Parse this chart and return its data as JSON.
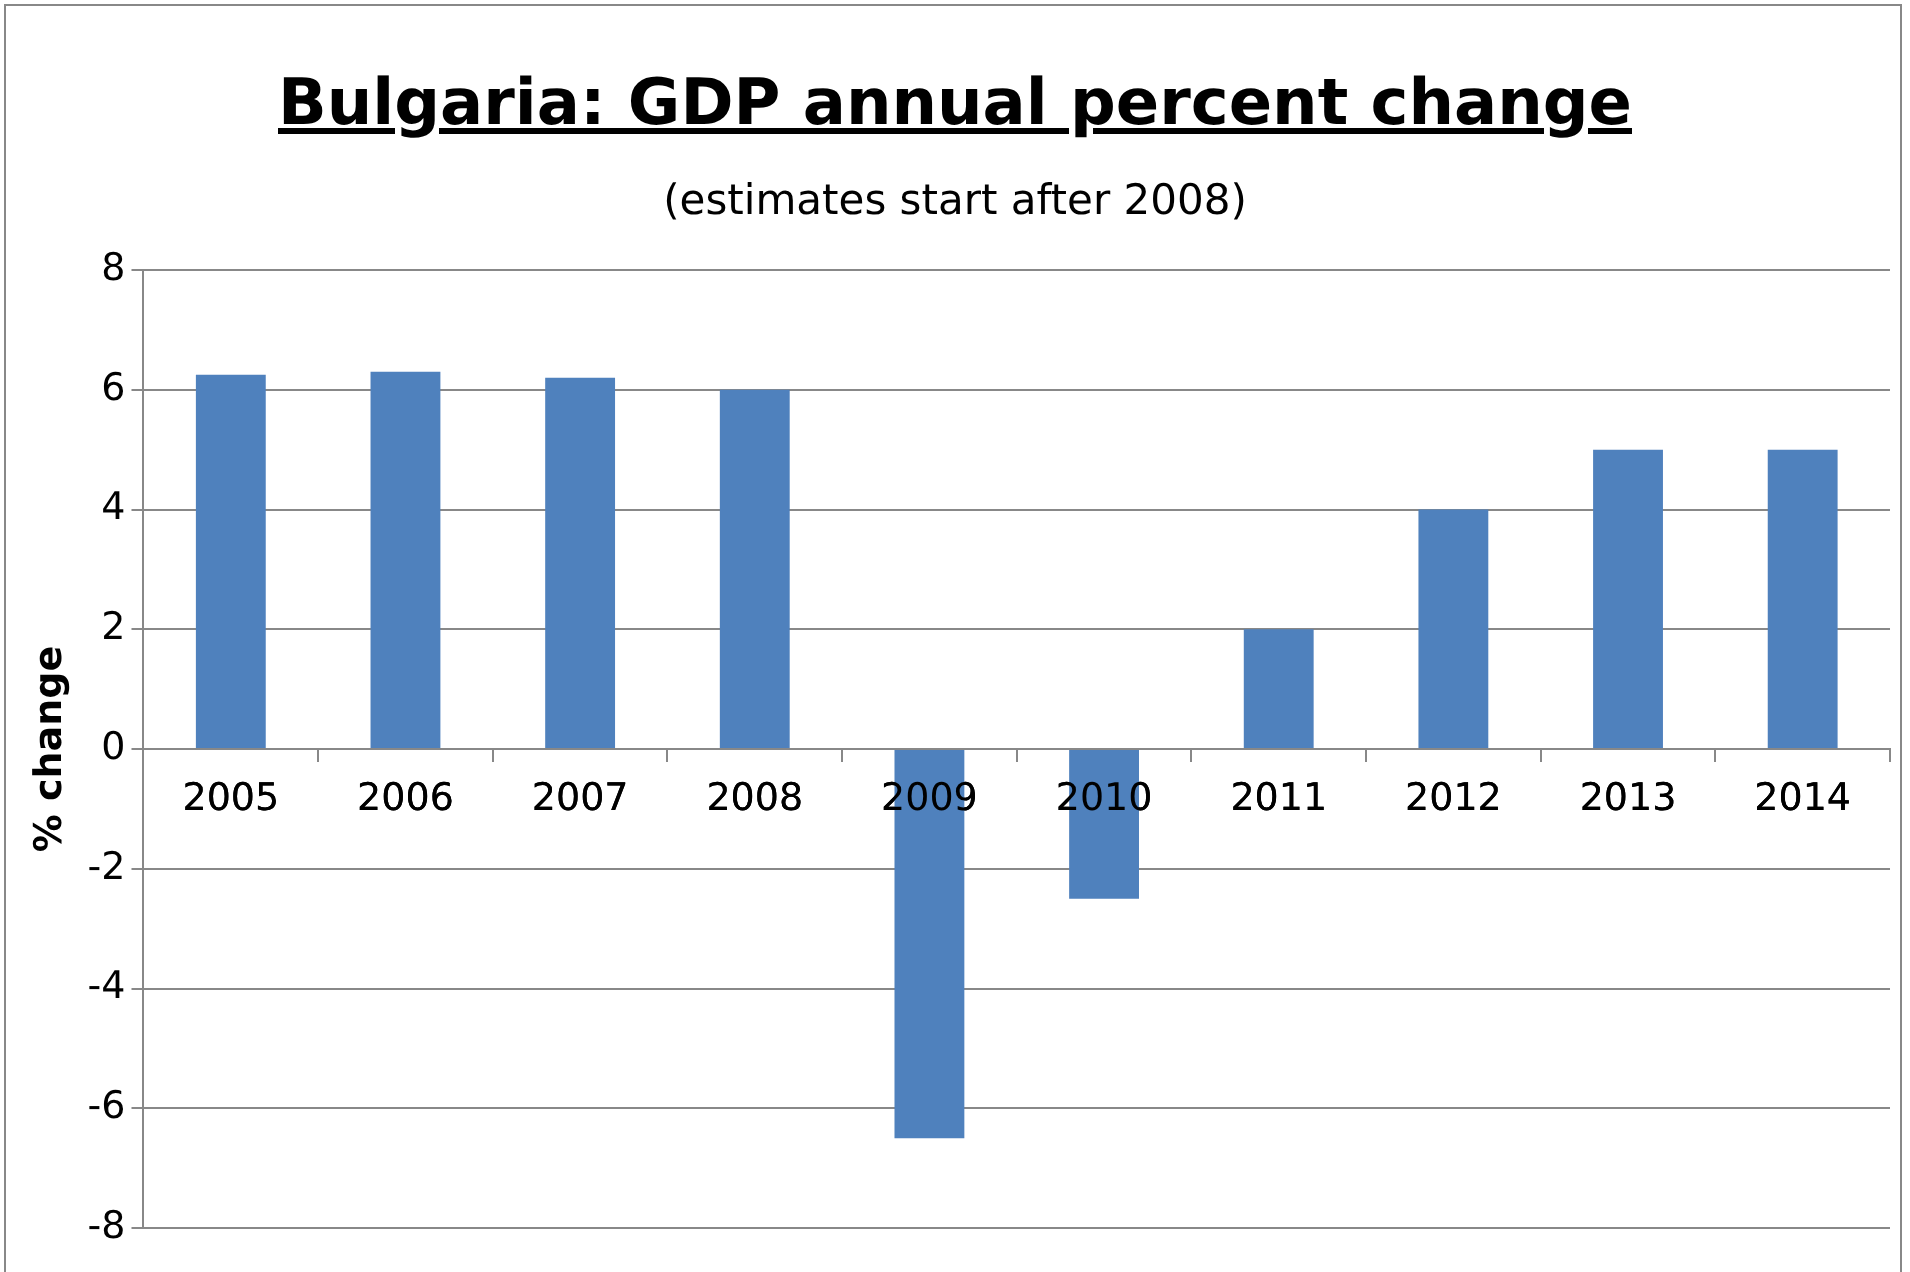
{
  "chart_data": {
    "type": "bar",
    "title": "Bulgaria: GDP annual percent change",
    "subtitle": "(estimates start after 2008)",
    "ylabel": "% change",
    "categories": [
      "2005",
      "2006",
      "2007",
      "2008",
      "2009",
      "2010",
      "2011",
      "2012",
      "2013",
      "2014"
    ],
    "values": [
      6.25,
      6.3,
      6.2,
      6.0,
      -6.5,
      -2.5,
      2.0,
      4.0,
      5.0,
      5.0
    ],
    "color": "#4f81bd",
    "ylim": [
      -8,
      8
    ],
    "yticks": [
      -8,
      -6,
      -4,
      -2,
      0,
      2,
      4,
      6,
      8
    ],
    "grid": "y",
    "legend": false
  }
}
